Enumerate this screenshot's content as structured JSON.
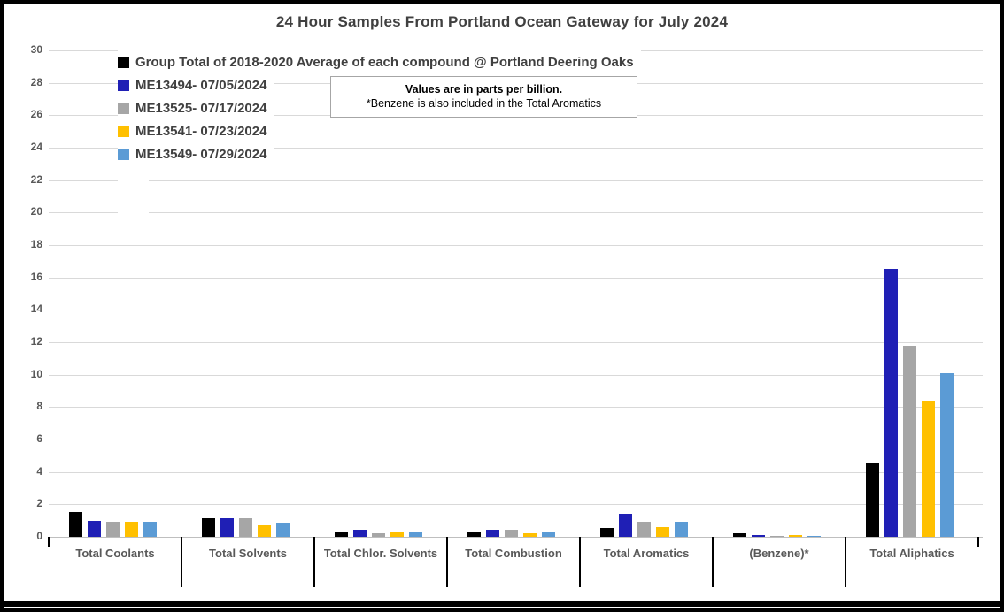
{
  "title": "24 Hour Samples From Portland Ocean Gateway for July 2024",
  "note": {
    "line1": "Values are in parts per billion.",
    "line2": "*Benzene is also included in the Total Aromatics"
  },
  "y_axis_tick_labels": [
    "0",
    "2",
    "4",
    "6",
    "8",
    "10",
    "12",
    "14",
    "16",
    "18",
    "20",
    "22",
    "24",
    "26",
    "28",
    "30"
  ],
  "colors": {
    "grid": "#D9D9D9",
    "axis_line": "#BFBFBF",
    "title_text": "#404040",
    "legend_text": "#404040",
    "axis_text": "#595959",
    "separator": "#000000",
    "frame_border": "#000000"
  },
  "chart_data": {
    "type": "bar",
    "title": "24 Hour Samples From Portland Ocean Gateway for July 2024",
    "units": "parts per billion",
    "categories": [
      "Total Coolants",
      "Total Solvents",
      "Total Chlor. Solvents",
      "Total Combustion",
      "Total Aromatics",
      "(Benzene)*",
      "Total Aliphatics"
    ],
    "series": [
      {
        "name": "Group Total of 2018-2020 Average of each compound @ Portland Deering Oaks",
        "color": "#000000",
        "values": [
          1.5,
          1.15,
          0.35,
          0.25,
          0.55,
          0.2,
          4.5
        ]
      },
      {
        "name": "ME13494- 07/05/2024",
        "color": "#1F1FB5",
        "values": [
          1.0,
          1.15,
          0.45,
          0.45,
          1.4,
          0.12,
          16.5
        ]
      },
      {
        "name": "ME13525- 07/17/2024",
        "color": "#A6A6A6",
        "values": [
          0.9,
          1.15,
          0.2,
          0.45,
          0.95,
          0.08,
          11.8
        ]
      },
      {
        "name": "ME13541- 07/23/2024",
        "color": "#FFC000",
        "values": [
          0.9,
          0.7,
          0.25,
          0.2,
          0.6,
          0.1,
          8.4
        ]
      },
      {
        "name": "ME13549- 07/29/2024",
        "color": "#5B9BD5",
        "values": [
          0.9,
          0.85,
          0.35,
          0.35,
          0.9,
          0.08,
          10.1
        ]
      }
    ],
    "ylim": [
      0,
      30
    ],
    "ytick_step": 2,
    "grid": true,
    "legend_position": "top-left",
    "note": "Values are in parts per billion. *Benzene is also included in the Total Aromatics"
  }
}
